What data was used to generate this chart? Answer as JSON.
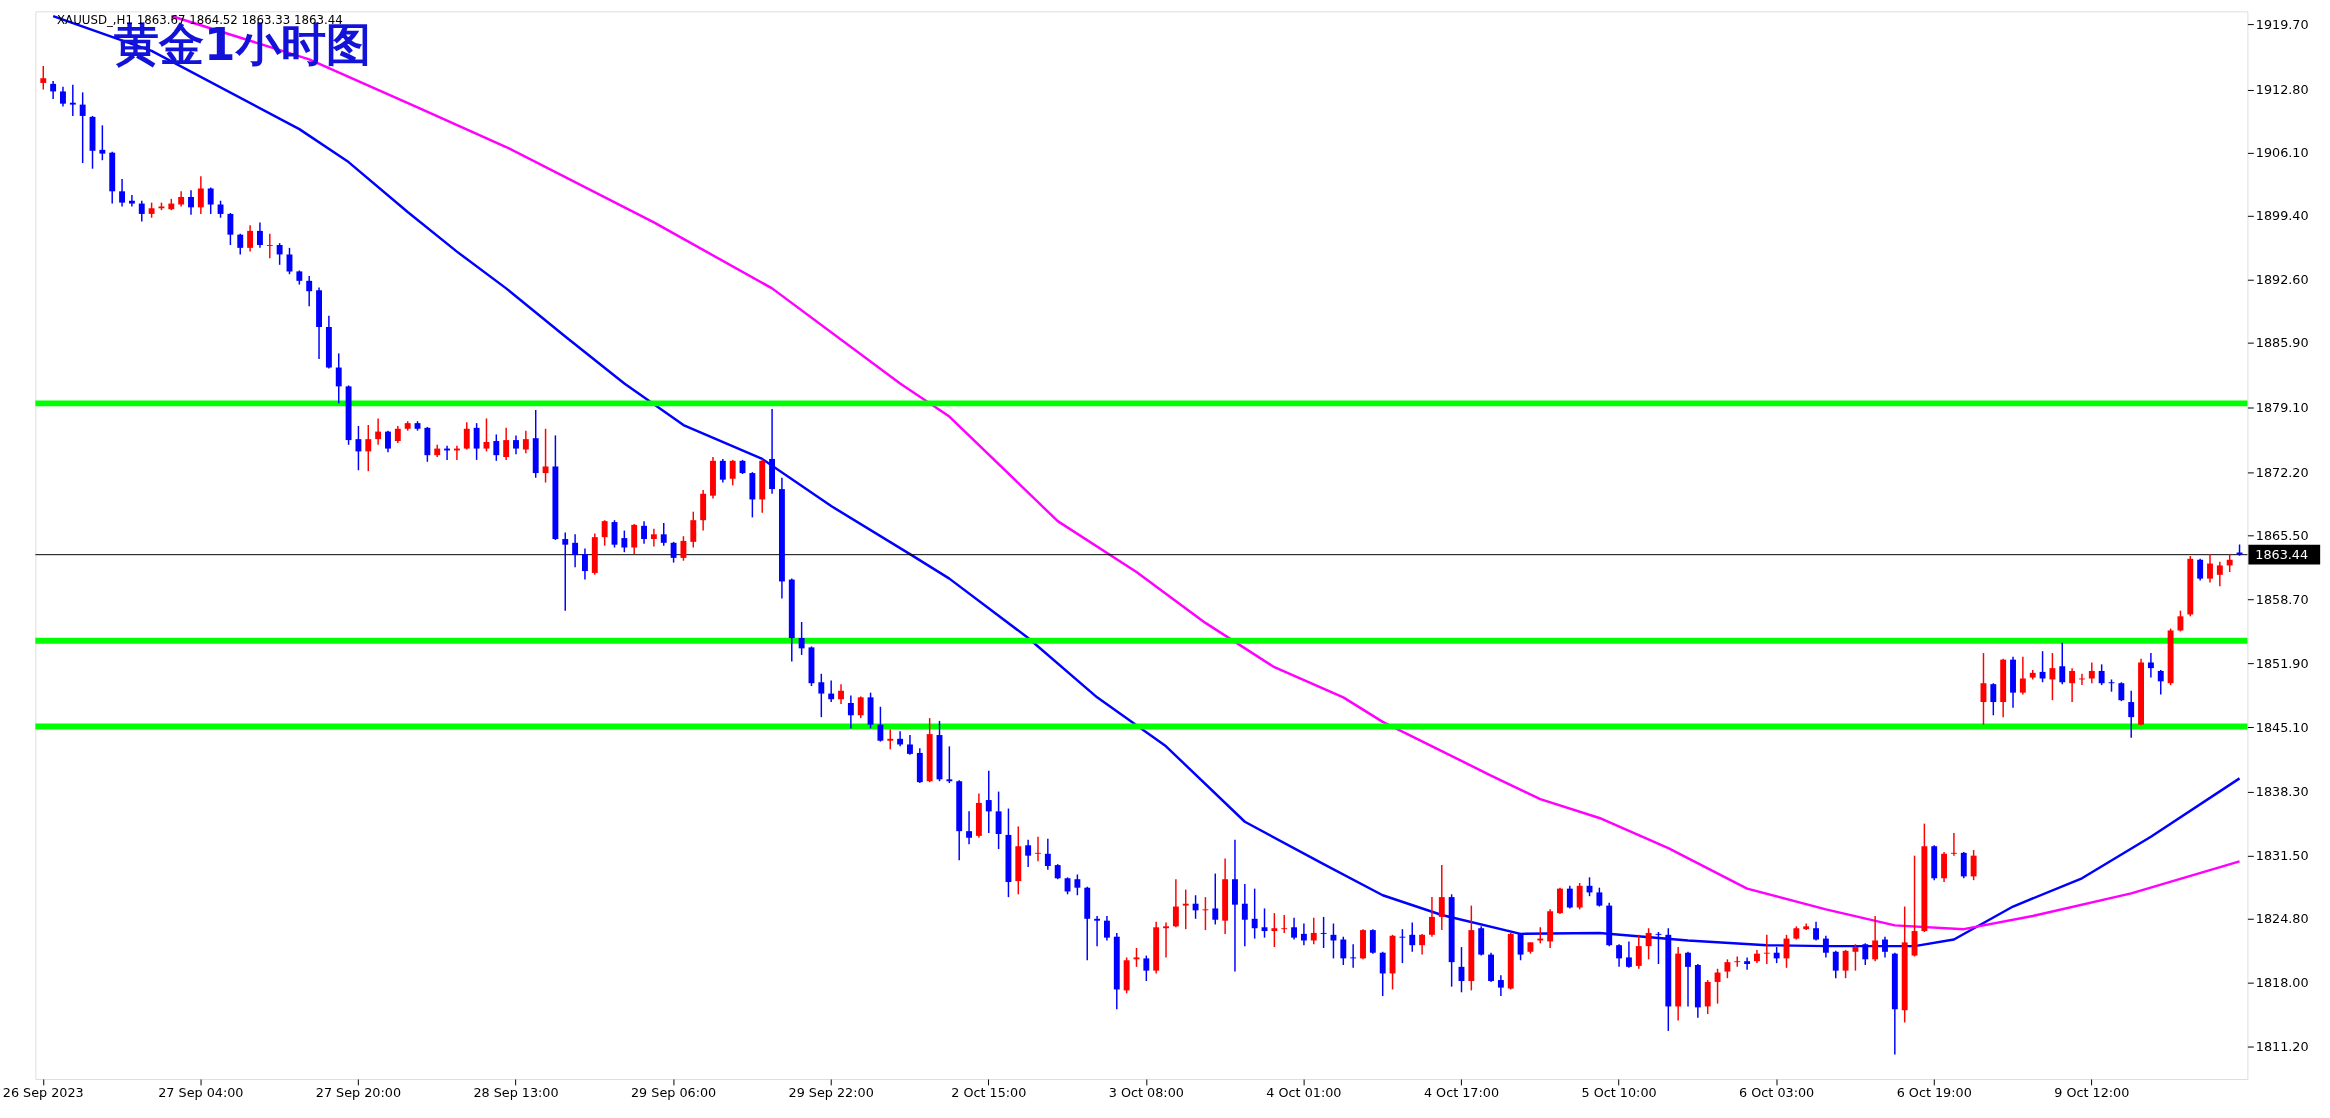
{
  "chart_data": {
    "type": "candlestick",
    "title": "黄金1小时图",
    "annotations": [
      "XAUUSD_,H1  1863.67 1864.52 1863.33 1863.44"
    ],
    "categories": [
      "26 Sep 2023",
      null,
      null,
      null,
      null,
      null,
      null,
      null,
      null,
      null,
      null,
      null,
      null,
      null,
      null,
      null,
      "27 Sep 04:00",
      null,
      null,
      null,
      null,
      null,
      null,
      null,
      null,
      null,
      null,
      null,
      null,
      null,
      null,
      null,
      "27 Sep 20:00",
      null,
      null,
      null,
      null,
      null,
      null,
      null,
      null,
      null,
      null,
      null,
      null,
      null,
      null,
      null,
      "28 Sep 13:00",
      null,
      null,
      null,
      null,
      null,
      null,
      null,
      null,
      null,
      null,
      null,
      null,
      null,
      null,
      null,
      "29 Sep 06:00",
      null,
      null,
      null,
      null,
      null,
      null,
      null,
      null,
      null,
      null,
      null,
      null,
      null,
      null,
      null,
      "29 Sep 22:00",
      null,
      null,
      null,
      null,
      null,
      null,
      null,
      null,
      null,
      null,
      null,
      null,
      null,
      null,
      null,
      "2 Oct 15:00",
      null,
      null,
      null,
      null,
      null,
      null,
      null,
      null,
      null,
      null,
      null,
      null,
      null,
      null,
      null,
      "3 Oct 08:00",
      null,
      null,
      null,
      null,
      null,
      null,
      null,
      null,
      null,
      null,
      null,
      null,
      null,
      null,
      null,
      "4 Oct 01:00",
      null,
      null,
      null,
      null,
      null,
      null,
      null,
      null,
      null,
      null,
      null,
      null,
      null,
      null,
      null,
      "4 Oct 17:00",
      null,
      null,
      null,
      null,
      null,
      null,
      null,
      null,
      null,
      null,
      null,
      null,
      null,
      null,
      null,
      "5 Oct 10:00",
      null,
      null,
      null,
      null,
      null,
      null,
      null,
      null,
      null,
      null,
      null,
      null,
      null,
      null,
      null,
      "6 Oct 03:00",
      null,
      null,
      null,
      null,
      null,
      null,
      null,
      null,
      null,
      null,
      null,
      null,
      null,
      null,
      null,
      "6 Oct 19:00",
      null,
      null,
      null,
      null,
      null,
      null,
      null,
      null,
      null,
      null,
      null,
      null,
      null,
      null,
      null,
      "9 Oct 12:00",
      null,
      null,
      null,
      null,
      null,
      null,
      null,
      null,
      null,
      null,
      null,
      null,
      null,
      null,
      null
    ],
    "ohlc": [
      [
        1913.5,
        1915.3,
        1912.8,
        1914.0
      ],
      [
        1913.4,
        1913.7,
        1911.8,
        1912.6
      ],
      [
        1912.6,
        1913.1,
        1911.0,
        1911.3
      ],
      [
        1911.4,
        1913.3,
        1910.0,
        1911.2
      ],
      [
        1911.2,
        1912.5,
        1905.0,
        1910.0
      ],
      [
        1909.9,
        1910.0,
        1904.4,
        1906.3
      ],
      [
        1906.4,
        1909.0,
        1905.3,
        1906.0
      ],
      [
        1906.1,
        1906.2,
        1900.7,
        1902.0
      ],
      [
        1902.0,
        1903.3,
        1900.4,
        1900.8
      ],
      [
        1901.0,
        1901.6,
        1900.4,
        1900.7
      ],
      [
        1900.7,
        1901.0,
        1898.8,
        1899.6
      ],
      [
        1899.6,
        1900.8,
        1899.2,
        1900.2
      ],
      [
        1900.2,
        1900.8,
        1900.0,
        1900.4
      ],
      [
        1900.1,
        1901.2,
        1900.0,
        1900.7
      ],
      [
        1900.6,
        1902.0,
        1900.4,
        1901.4
      ],
      [
        1901.4,
        1902.1,
        1899.5,
        1900.3
      ],
      [
        1900.3,
        1903.6,
        1899.6,
        1902.3
      ],
      [
        1902.3,
        1902.4,
        1899.6,
        1900.6
      ],
      [
        1900.6,
        1901.0,
        1899.2,
        1899.6
      ],
      [
        1899.6,
        1899.7,
        1896.3,
        1897.4
      ],
      [
        1897.4,
        1897.5,
        1895.3,
        1896.0
      ],
      [
        1896.0,
        1898.4,
        1895.6,
        1897.8
      ],
      [
        1897.8,
        1898.7,
        1896.0,
        1896.3
      ],
      [
        1896.2,
        1897.5,
        1894.9,
        1896.3
      ],
      [
        1896.3,
        1896.5,
        1894.2,
        1895.3
      ],
      [
        1895.3,
        1896.0,
        1893.2,
        1893.5
      ],
      [
        1893.5,
        1893.6,
        1892.1,
        1892.5
      ],
      [
        1892.5,
        1893.0,
        1889.8,
        1891.4
      ],
      [
        1891.5,
        1891.8,
        1884.2,
        1887.6
      ],
      [
        1887.6,
        1888.8,
        1883.2,
        1883.3
      ],
      [
        1883.3,
        1884.8,
        1879.5,
        1881.3
      ],
      [
        1881.3,
        1881.4,
        1875.1,
        1875.6
      ],
      [
        1875.7,
        1877.1,
        1872.4,
        1874.4
      ],
      [
        1874.4,
        1877.2,
        1872.3,
        1875.7
      ],
      [
        1875.7,
        1877.9,
        1875.1,
        1876.5
      ],
      [
        1876.5,
        1876.6,
        1874.3,
        1874.7
      ],
      [
        1875.5,
        1877.1,
        1875.3,
        1876.8
      ],
      [
        1876.8,
        1877.6,
        1876.6,
        1877.4
      ],
      [
        1877.4,
        1877.6,
        1876.6,
        1876.8
      ],
      [
        1876.9,
        1877.0,
        1873.3,
        1874.0
      ],
      [
        1874.0,
        1875.1,
        1873.8,
        1874.7
      ],
      [
        1874.7,
        1875.0,
        1873.5,
        1874.5
      ],
      [
        1874.5,
        1875.0,
        1873.5,
        1874.7
      ],
      [
        1874.7,
        1877.5,
        1874.6,
        1876.8
      ],
      [
        1876.9,
        1877.4,
        1873.5,
        1874.7
      ],
      [
        1874.7,
        1877.9,
        1874.4,
        1875.4
      ],
      [
        1875.5,
        1876.2,
        1873.4,
        1874.0
      ],
      [
        1873.8,
        1876.9,
        1873.5,
        1875.6
      ],
      [
        1875.6,
        1876.1,
        1874.1,
        1874.7
      ],
      [
        1874.6,
        1876.6,
        1874.2,
        1875.7
      ],
      [
        1875.8,
        1878.8,
        1871.6,
        1872.1
      ],
      [
        1872.1,
        1876.8,
        1871.1,
        1872.8
      ],
      [
        1872.8,
        1876.1,
        1865.0,
        1865.1
      ],
      [
        1865.1,
        1865.8,
        1857.5,
        1864.5
      ],
      [
        1864.7,
        1865.6,
        1862.1,
        1863.4
      ],
      [
        1863.5,
        1864.1,
        1860.8,
        1861.7
      ],
      [
        1861.5,
        1865.7,
        1861.3,
        1865.3
      ],
      [
        1865.3,
        1867.1,
        1864.4,
        1867.0
      ],
      [
        1866.9,
        1867.1,
        1864.2,
        1864.5
      ],
      [
        1865.2,
        1866.0,
        1863.7,
        1864.2
      ],
      [
        1864.2,
        1866.7,
        1863.5,
        1866.6
      ],
      [
        1866.5,
        1867.0,
        1864.6,
        1865.1
      ],
      [
        1865.1,
        1866.2,
        1864.3,
        1865.6
      ],
      [
        1865.6,
        1866.8,
        1864.4,
        1864.7
      ],
      [
        1864.7,
        1864.8,
        1862.6,
        1863.1
      ],
      [
        1863.1,
        1865.4,
        1862.8,
        1864.9
      ],
      [
        1864.8,
        1868.0,
        1864.2,
        1867.1
      ],
      [
        1867.1,
        1870.3,
        1866.0,
        1869.9
      ],
      [
        1869.7,
        1873.8,
        1869.4,
        1873.4
      ],
      [
        1873.4,
        1873.6,
        1871.1,
        1871.4
      ],
      [
        1871.5,
        1873.5,
        1870.8,
        1873.4
      ],
      [
        1873.4,
        1873.5,
        1872.0,
        1872.1
      ],
      [
        1872.1,
        1872.2,
        1867.4,
        1869.3
      ],
      [
        1869.3,
        1873.6,
        1867.9,
        1873.4
      ],
      [
        1873.6,
        1878.9,
        1869.9,
        1870.4
      ],
      [
        1870.4,
        1871.6,
        1858.8,
        1860.6
      ],
      [
        1860.8,
        1860.9,
        1852.1,
        1854.6
      ],
      [
        1854.6,
        1856.3,
        1852.8,
        1853.5
      ],
      [
        1853.6,
        1853.7,
        1849.5,
        1849.8
      ],
      [
        1849.9,
        1850.8,
        1846.2,
        1848.7
      ],
      [
        1848.7,
        1850.1,
        1847.8,
        1848.1
      ],
      [
        1848.1,
        1849.7,
        1847.6,
        1849.0
      ],
      [
        1847.7,
        1848.5,
        1845.0,
        1846.4
      ],
      [
        1846.4,
        1848.4,
        1846.1,
        1848.3
      ],
      [
        1848.3,
        1848.8,
        1845.0,
        1845.4
      ],
      [
        1845.4,
        1847.3,
        1843.6,
        1843.7
      ],
      [
        1843.7,
        1844.9,
        1842.8,
        1843.9
      ],
      [
        1843.9,
        1844.7,
        1843.1,
        1843.3
      ],
      [
        1843.3,
        1844.3,
        1842.2,
        1842.3
      ],
      [
        1842.4,
        1842.9,
        1839.2,
        1839.3
      ],
      [
        1839.4,
        1846.1,
        1839.3,
        1844.4
      ],
      [
        1844.3,
        1845.8,
        1839.4,
        1839.6
      ],
      [
        1839.6,
        1843.1,
        1839.2,
        1839.4
      ],
      [
        1839.4,
        1839.5,
        1831.0,
        1834.1
      ],
      [
        1834.1,
        1836.2,
        1832.7,
        1833.4
      ],
      [
        1833.6,
        1838.1,
        1833.4,
        1837.1
      ],
      [
        1837.4,
        1840.5,
        1833.9,
        1836.2
      ],
      [
        1836.2,
        1838.3,
        1832.2,
        1833.8
      ],
      [
        1833.7,
        1836.5,
        1827.1,
        1828.7
      ],
      [
        1828.8,
        1834.6,
        1827.4,
        1832.5
      ],
      [
        1832.6,
        1833.2,
        1830.3,
        1831.5
      ],
      [
        1831.7,
        1833.5,
        1830.9,
        1831.8
      ],
      [
        1831.7,
        1833.3,
        1830.0,
        1830.4
      ],
      [
        1830.5,
        1830.6,
        1829.0,
        1829.1
      ],
      [
        1829.1,
        1829.2,
        1827.4,
        1827.7
      ],
      [
        1829.0,
        1829.5,
        1827.3,
        1828.1
      ],
      [
        1828.1,
        1828.2,
        1820.4,
        1824.8
      ],
      [
        1824.8,
        1825.1,
        1821.9,
        1824.6
      ],
      [
        1824.6,
        1825.1,
        1822.5,
        1822.8
      ],
      [
        1822.9,
        1823.3,
        1815.2,
        1817.3
      ],
      [
        1817.2,
        1820.7,
        1816.9,
        1820.4
      ],
      [
        1820.5,
        1821.7,
        1819.7,
        1820.7
      ],
      [
        1820.6,
        1820.9,
        1818.2,
        1819.3
      ],
      [
        1819.3,
        1824.5,
        1819.0,
        1823.9
      ],
      [
        1823.8,
        1824.4,
        1820.7,
        1824.0
      ],
      [
        1824.0,
        1829.0,
        1823.9,
        1826.1
      ],
      [
        1826.2,
        1827.9,
        1823.7,
        1826.4
      ],
      [
        1826.4,
        1827.3,
        1824.8,
        1825.7
      ],
      [
        1825.7,
        1827.1,
        1823.6,
        1825.8
      ],
      [
        1825.9,
        1829.6,
        1824.2,
        1824.7
      ],
      [
        1824.6,
        1831.2,
        1823.2,
        1829.0
      ],
      [
        1829.0,
        1833.2,
        1819.2,
        1826.3
      ],
      [
        1826.4,
        1828.5,
        1821.9,
        1824.7
      ],
      [
        1824.8,
        1828.0,
        1822.7,
        1823.8
      ],
      [
        1823.9,
        1825.9,
        1822.8,
        1823.5
      ],
      [
        1823.5,
        1825.4,
        1821.8,
        1823.8
      ],
      [
        1823.7,
        1825.2,
        1823.3,
        1823.8
      ],
      [
        1823.9,
        1824.9,
        1822.6,
        1822.8
      ],
      [
        1823.2,
        1824.3,
        1822.0,
        1822.5
      ],
      [
        1822.5,
        1824.9,
        1822.1,
        1823.3
      ],
      [
        1823.3,
        1825.0,
        1821.7,
        1823.2
      ],
      [
        1823.1,
        1824.3,
        1820.6,
        1822.5
      ],
      [
        1822.6,
        1822.9,
        1819.9,
        1820.6
      ],
      [
        1820.7,
        1822.1,
        1819.6,
        1820.6
      ],
      [
        1820.6,
        1823.7,
        1820.5,
        1823.6
      ],
      [
        1823.6,
        1823.7,
        1821.1,
        1821.2
      ],
      [
        1821.2,
        1821.3,
        1816.6,
        1819.0
      ],
      [
        1819.0,
        1823.1,
        1817.3,
        1823.0
      ],
      [
        1822.9,
        1823.7,
        1820.1,
        1822.8
      ],
      [
        1823.1,
        1824.4,
        1821.3,
        1822.0
      ],
      [
        1822.0,
        1823.2,
        1821.0,
        1823.1
      ],
      [
        1823.1,
        1827.1,
        1822.9,
        1825.0
      ],
      [
        1825.0,
        1830.5,
        1823.6,
        1827.1
      ],
      [
        1827.1,
        1827.4,
        1817.6,
        1820.2
      ],
      [
        1819.7,
        1821.8,
        1817.0,
        1818.2
      ],
      [
        1818.2,
        1826.2,
        1817.2,
        1823.6
      ],
      [
        1823.8,
        1824.0,
        1820.9,
        1821.0
      ],
      [
        1821.0,
        1821.2,
        1818.1,
        1818.2
      ],
      [
        1818.3,
        1818.8,
        1816.6,
        1817.5
      ],
      [
        1817.4,
        1823.3,
        1817.3,
        1823.2
      ],
      [
        1823.2,
        1823.3,
        1820.4,
        1821.0
      ],
      [
        1821.3,
        1822.3,
        1821.1,
        1822.3
      ],
      [
        1822.5,
        1823.9,
        1822.2,
        1822.7
      ],
      [
        1822.4,
        1825.8,
        1821.7,
        1825.6
      ],
      [
        1825.4,
        1828.1,
        1825.3,
        1828.0
      ],
      [
        1828.0,
        1828.3,
        1825.9,
        1826.0
      ],
      [
        1826.0,
        1828.6,
        1825.8,
        1828.3
      ],
      [
        1828.3,
        1829.2,
        1827.2,
        1827.6
      ],
      [
        1827.6,
        1828.1,
        1826.1,
        1826.2
      ],
      [
        1826.2,
        1826.5,
        1821.9,
        1822.0
      ],
      [
        1822.0,
        1822.1,
        1819.7,
        1820.6
      ],
      [
        1820.7,
        1822.4,
        1819.6,
        1819.7
      ],
      [
        1819.8,
        1823.1,
        1819.5,
        1821.9
      ],
      [
        1821.9,
        1823.8,
        1820.5,
        1823.3
      ],
      [
        1823.2,
        1823.4,
        1820.0,
        1823.1
      ],
      [
        1823.1,
        1823.8,
        1812.9,
        1815.5
      ],
      [
        1815.5,
        1821.8,
        1814.0,
        1821.1
      ],
      [
        1821.2,
        1821.3,
        1815.5,
        1819.7
      ],
      [
        1819.9,
        1820.0,
        1814.3,
        1815.4
      ],
      [
        1815.5,
        1818.3,
        1814.7,
        1818.1
      ],
      [
        1818.1,
        1819.5,
        1815.8,
        1819.1
      ],
      [
        1819.2,
        1820.5,
        1818.5,
        1820.2
      ],
      [
        1820.2,
        1820.8,
        1819.7,
        1820.3
      ],
      [
        1820.3,
        1820.7,
        1819.4,
        1820.0
      ],
      [
        1820.3,
        1821.5,
        1820.1,
        1821.1
      ],
      [
        1821.1,
        1823.1,
        1820.0,
        1821.2
      ],
      [
        1821.2,
        1821.8,
        1820.1,
        1820.6
      ],
      [
        1820.6,
        1823.1,
        1819.6,
        1822.7
      ],
      [
        1822.7,
        1824.0,
        1822.6,
        1823.8
      ],
      [
        1823.7,
        1824.3,
        1823.6,
        1824.0
      ],
      [
        1823.8,
        1824.5,
        1822.5,
        1822.6
      ],
      [
        1822.7,
        1823.0,
        1820.7,
        1821.2
      ],
      [
        1821.3,
        1821.4,
        1818.5,
        1819.3
      ],
      [
        1819.3,
        1821.5,
        1818.5,
        1821.4
      ],
      [
        1821.3,
        1822.1,
        1819.3,
        1821.8
      ],
      [
        1822.1,
        1822.2,
        1819.9,
        1820.5
      ],
      [
        1820.5,
        1825.1,
        1820.3,
        1822.5
      ],
      [
        1822.6,
        1822.9,
        1820.7,
        1821.3
      ],
      [
        1821.1,
        1821.2,
        1810.4,
        1815.2
      ],
      [
        1815.1,
        1826.1,
        1813.8,
        1822.3
      ],
      [
        1820.9,
        1831.5,
        1820.8,
        1823.5
      ],
      [
        1823.5,
        1834.9,
        1823.4,
        1832.5
      ],
      [
        1832.5,
        1832.6,
        1828.9,
        1829.1
      ],
      [
        1829.1,
        1831.9,
        1828.7,
        1831.7
      ],
      [
        1831.7,
        1833.9,
        1831.5,
        1831.8
      ],
      [
        1831.8,
        1831.9,
        1829.1,
        1829.3
      ],
      [
        1829.3,
        1832.1,
        1828.9,
        1831.5
      ],
      [
        1847.8,
        1853.0,
        1845.4,
        1849.8
      ],
      [
        1849.7,
        1849.8,
        1846.4,
        1847.8
      ],
      [
        1847.8,
        1852.4,
        1846.2,
        1852.3
      ],
      [
        1852.3,
        1852.6,
        1847.2,
        1848.8
      ],
      [
        1848.8,
        1852.6,
        1848.6,
        1850.3
      ],
      [
        1850.4,
        1851.2,
        1850.2,
        1850.9
      ],
      [
        1851.0,
        1853.2,
        1849.9,
        1850.3
      ],
      [
        1850.2,
        1853.0,
        1848.0,
        1851.4
      ],
      [
        1851.6,
        1854.1,
        1849.7,
        1849.9
      ],
      [
        1849.8,
        1851.4,
        1847.8,
        1851.1
      ],
      [
        1850.2,
        1850.8,
        1849.6,
        1850.3
      ],
      [
        1850.3,
        1852.0,
        1849.8,
        1851.1
      ],
      [
        1851.1,
        1851.8,
        1849.6,
        1849.8
      ],
      [
        1849.9,
        1850.2,
        1848.9,
        1849.8
      ],
      [
        1849.8,
        1849.9,
        1847.9,
        1848.0
      ],
      [
        1847.8,
        1849.0,
        1844.0,
        1846.2
      ],
      [
        1845.4,
        1852.4,
        1845.3,
        1852.0
      ],
      [
        1852.0,
        1853.0,
        1850.4,
        1851.4
      ],
      [
        1851.1,
        1851.2,
        1848.6,
        1850.0
      ],
      [
        1849.8,
        1855.6,
        1849.6,
        1855.4
      ],
      [
        1855.4,
        1857.5,
        1855.3,
        1856.9
      ],
      [
        1857.1,
        1863.3,
        1856.9,
        1863.0
      ],
      [
        1862.9,
        1863.0,
        1860.7,
        1860.9
      ],
      [
        1860.9,
        1863.5,
        1860.5,
        1862.5
      ],
      [
        1861.3,
        1862.7,
        1860.1,
        1862.3
      ],
      [
        1862.3,
        1863.5,
        1861.6,
        1862.9
      ],
      [
        1863.67,
        1864.52,
        1863.33,
        1863.44
      ]
    ],
    "colors": [
      "#ff0000",
      "#0000ff",
      "#0000ff",
      "#0000ff",
      "#0000ff",
      "#0000ff",
      "#0000ff",
      "#0000ff",
      "#0000ff",
      "#0000ff",
      "#0000ff",
      "#ff0000",
      "#ff0000",
      "#ff0000",
      "#ff0000",
      "#0000ff",
      "#ff0000",
      "#0000ff",
      "#0000ff",
      "#0000ff",
      "#0000ff",
      "#ff0000",
      "#0000ff",
      "#ff0000",
      "#0000ff",
      "#0000ff",
      "#0000ff",
      "#0000ff",
      "#0000ff",
      "#0000ff",
      "#0000ff",
      "#0000ff",
      "#0000ff",
      "#ff0000",
      "#ff0000",
      "#0000ff",
      "#ff0000",
      "#ff0000",
      "#0000ff",
      "#0000ff",
      "#ff0000",
      "#0000ff",
      "#ff0000",
      "#ff0000",
      "#0000ff",
      "#ff0000",
      "#0000ff",
      "#ff0000",
      "#0000ff",
      "#ff0000",
      "#0000ff",
      "#ff0000",
      "#0000ff",
      "#0000ff",
      "#0000ff",
      "#0000ff",
      "#ff0000",
      "#ff0000",
      "#0000ff",
      "#0000ff",
      "#ff0000",
      "#0000ff",
      "#ff0000",
      "#0000ff",
      "#0000ff",
      "#ff0000",
      "#ff0000",
      "#ff0000",
      "#ff0000",
      "#0000ff",
      "#ff0000",
      "#0000ff",
      "#0000ff",
      "#ff0000",
      "#0000ff",
      "#0000ff",
      "#0000ff",
      "#0000ff",
      "#0000ff",
      "#0000ff",
      "#0000ff",
      "#ff0000",
      "#0000ff",
      "#ff0000",
      "#0000ff",
      "#0000ff",
      "#ff0000",
      "#0000ff",
      "#0000ff",
      "#0000ff",
      "#ff0000",
      "#0000ff",
      "#0000ff",
      "#0000ff",
      "#0000ff",
      "#ff0000",
      "#0000ff",
      "#0000ff",
      "#0000ff",
      "#ff0000",
      "#0000ff",
      "#ff0000",
      "#0000ff",
      "#0000ff",
      "#0000ff",
      "#0000ff",
      "#0000ff",
      "#0000ff",
      "#0000ff",
      "#0000ff",
      "#ff0000",
      "#ff0000",
      "#0000ff",
      "#ff0000",
      "#ff0000",
      "#ff0000",
      "#ff0000",
      "#0000ff",
      "#ff0000",
      "#0000ff",
      "#ff0000",
      "#0000ff",
      "#0000ff",
      "#0000ff",
      "#0000ff",
      "#ff0000",
      "#ff0000",
      "#0000ff",
      "#0000ff",
      "#ff0000",
      "#0000ff",
      "#0000ff",
      "#0000ff",
      "#0000ff",
      "#ff0000",
      "#0000ff",
      "#0000ff",
      "#ff0000",
      "#0000ff",
      "#0000ff",
      "#ff0000",
      "#ff0000",
      "#ff0000",
      "#0000ff",
      "#0000ff",
      "#ff0000",
      "#0000ff",
      "#0000ff",
      "#0000ff",
      "#ff0000",
      "#0000ff",
      "#ff0000",
      "#ff0000",
      "#ff0000",
      "#ff0000",
      "#0000ff",
      "#ff0000",
      "#0000ff",
      "#0000ff",
      "#0000ff",
      "#0000ff",
      "#0000ff",
      "#ff0000",
      "#ff0000",
      "#0000ff",
      "#0000ff",
      "#ff0000",
      "#0000ff",
      "#0000ff",
      "#ff0000",
      "#ff0000",
      "#ff0000",
      "#ff0000",
      "#0000ff",
      "#ff0000",
      "#ff0000",
      "#0000ff",
      "#ff0000",
      "#ff0000",
      "#ff0000",
      "#0000ff",
      "#0000ff",
      "#0000ff",
      "#ff0000",
      "#ff0000",
      "#0000ff",
      "#ff0000",
      "#0000ff",
      "#0000ff",
      "#ff0000",
      "#ff0000",
      "#ff0000",
      "#0000ff",
      "#ff0000",
      "#ff0000",
      "#0000ff",
      "#ff0000",
      "#ff0000",
      "#0000ff",
      "#ff0000",
      "#0000ff",
      "#ff0000",
      "#ff0000",
      "#0000ff",
      "#ff0000",
      "#0000ff",
      "#ff0000",
      "#ff0000",
      "#ff0000",
      "#0000ff",
      "#0000ff",
      "#0000ff",
      "#0000ff",
      "#ff0000",
      "#0000ff",
      "#0000ff",
      "#ff0000",
      "#ff0000",
      "#ff0000",
      "#0000ff",
      "#ff0000",
      "#ff0000",
      "#ff0000",
      "#0000ff"
    ],
    "series": [
      {
        "type": "line",
        "color": "#0000ff",
        "values": [
          null,
          1920.6,
          null,
          null,
          null,
          null,
          null,
          null,
          null,
          null,
          null,
          1916.9,
          null,
          null,
          null,
          null,
          null,
          null,
          null,
          null,
          null,
          null,
          null,
          null,
          null,
          null,
          1908.6,
          null,
          null,
          null,
          null,
          1905.1,
          null,
          null,
          null,
          null,
          null,
          1899.8,
          null,
          null,
          null,
          null,
          1895.6,
          null,
          null,
          null,
          null,
          1891.7,
          null,
          null,
          null,
          null,
          null,
          1886.6,
          null,
          null,
          null,
          null,
          null,
          1881.6,
          null,
          null,
          null,
          null,
          null,
          1877.2,
          null,
          null,
          null,
          null,
          null,
          null,
          null,
          1873.6,
          null,
          null,
          null,
          null,
          null,
          null,
          1868.6,
          null,
          null,
          null,
          null,
          null,
          null,
          null,
          1863.5,
          null,
          null,
          null,
          1860.9,
          null,
          null,
          null,
          null,
          null,
          null,
          null,
          1854.6,
          null,
          null,
          null,
          null,
          null,
          null,
          1848.3,
          null,
          null,
          null,
          null,
          null,
          null,
          1843.1,
          null,
          null,
          null,
          null,
          null,
          null,
          null,
          1835.1,
          null,
          null,
          null,
          null,
          null,
          null,
          null,
          1830.6,
          null,
          null,
          null,
          null,
          null,
          1827.3,
          null,
          null,
          null,
          null,
          null,
          1825.2,
          null,
          null,
          null,
          null,
          null,
          null,
          null,
          1823.2,
          null,
          null,
          null,
          null,
          null,
          null,
          null,
          1823.3,
          null,
          null,
          null,
          null,
          null,
          null,
          null,
          null,
          1822.5,
          null,
          null,
          null,
          null,
          null,
          null,
          null,
          1822.0,
          null,
          null,
          null,
          null,
          null,
          1821.9,
          null,
          null,
          null,
          null,
          null,
          null,
          null,
          null,
          1821.9,
          null,
          null,
          null,
          1822.6,
          null,
          null,
          null,
          null,
          null,
          1826.1,
          null,
          null,
          null,
          null,
          null,
          null,
          1829.1,
          null,
          null,
          null,
          null,
          null,
          null,
          1833.5,
          null,
          null,
          null,
          null,
          null,
          null,
          null,
          null,
          1839.7
        ]
      },
      {
        "type": "line",
        "color": "#ff00ff",
        "values": [
          null,
          null,
          null,
          null,
          null,
          null,
          null,
          null,
          null,
          null,
          null,
          null,
          null,
          1920.6,
          null,
          null,
          null,
          null,
          null,
          null,
          null,
          null,
          null,
          null,
          null,
          null,
          null,
          1916.0,
          null,
          null,
          null,
          null,
          null,
          null,
          null,
          null,
          null,
          null,
          1910.9,
          null,
          null,
          null,
          null,
          null,
          null,
          null,
          null,
          1906.7,
          null,
          null,
          null,
          null,
          null,
          null,
          null,
          null,
          null,
          null,
          null,
          null,
          null,
          null,
          1898.7,
          null,
          null,
          null,
          null,
          null,
          null,
          null,
          null,
          null,
          null,
          null,
          1891.7,
          null,
          null,
          null,
          null,
          null,
          null,
          null,
          null,
          null,
          null,
          null,
          null,
          1881.6,
          null,
          null,
          null,
          null,
          1878.1,
          null,
          null,
          null,
          null,
          null,
          null,
          null,
          null,
          null,
          null,
          1867.0,
          null,
          null,
          null,
          null,
          null,
          null,
          null,
          1861.6,
          null,
          null,
          null,
          null,
          null,
          null,
          1856.2,
          null,
          null,
          null,
          null,
          null,
          null,
          1851.5,
          null,
          null,
          null,
          null,
          null,
          null,
          1848.3,
          null,
          null,
          null,
          1845.7,
          null,
          null,
          null,
          null,
          null,
          null,
          null,
          null,
          null,
          null,
          1840.0,
          null,
          null,
          null,
          null,
          1837.5,
          null,
          null,
          null,
          null,
          null,
          1835.5,
          null,
          null,
          null,
          null,
          null,
          null,
          1832.3,
          null,
          null,
          null,
          null,
          null,
          null,
          null,
          1828.0,
          null,
          null,
          null,
          null,
          null,
          null,
          null,
          1825.8,
          null,
          null,
          null,
          null,
          null,
          null,
          1824.1,
          null,
          null,
          null,
          null,
          null,
          null,
          1823.7,
          null,
          null,
          null,
          null,
          null,
          null,
          1825.1,
          null,
          null,
          null,
          null,
          null,
          null,
          null,
          null,
          null,
          1827.5,
          null,
          null,
          null,
          null,
          null,
          null,
          null,
          null,
          null,
          null,
          1830.9
        ]
      }
    ],
    "ylim": [
      1807.8,
      1921.1
    ],
    "yticks": [
      {
        "value": 1919.7,
        "label": "1919.70"
      },
      {
        "value": 1912.8,
        "label": "1912.80"
      },
      {
        "value": 1906.1,
        "label": "1906.10"
      },
      {
        "value": 1899.4,
        "label": "1899.40"
      },
      {
        "value": 1892.6,
        "label": "1892.60"
      },
      {
        "value": 1885.9,
        "label": "1885.90"
      },
      {
        "value": 1879.1,
        "label": "1879.10"
      },
      {
        "value": 1872.2,
        "label": "1872.20"
      },
      {
        "value": 1865.5,
        "label": "1865.50"
      },
      {
        "value": 1858.7,
        "label": "1858.70"
      },
      {
        "value": 1851.9,
        "label": "1851.90"
      },
      {
        "value": 1845.1,
        "label": "1845.10"
      },
      {
        "value": 1838.3,
        "label": "1838.30"
      },
      {
        "value": 1831.5,
        "label": "1831.50"
      },
      {
        "value": 1824.8,
        "label": "1824.80"
      },
      {
        "value": 1818.0,
        "label": "1818.00"
      },
      {
        "value": 1811.2,
        "label": "1811.20"
      }
    ],
    "ref_lines": [
      {
        "axis": "y",
        "value": 1879.5,
        "label": null,
        "color": "#00ff00"
      },
      {
        "axis": "y",
        "value": 1854.3,
        "label": null,
        "color": "#00ff00"
      },
      {
        "axis": "y",
        "value": 1845.2,
        "label": null,
        "color": "#00ff00"
      },
      {
        "axis": "y",
        "value": 1863.44,
        "label": "1863.44",
        "color": "#000000"
      }
    ]
  }
}
